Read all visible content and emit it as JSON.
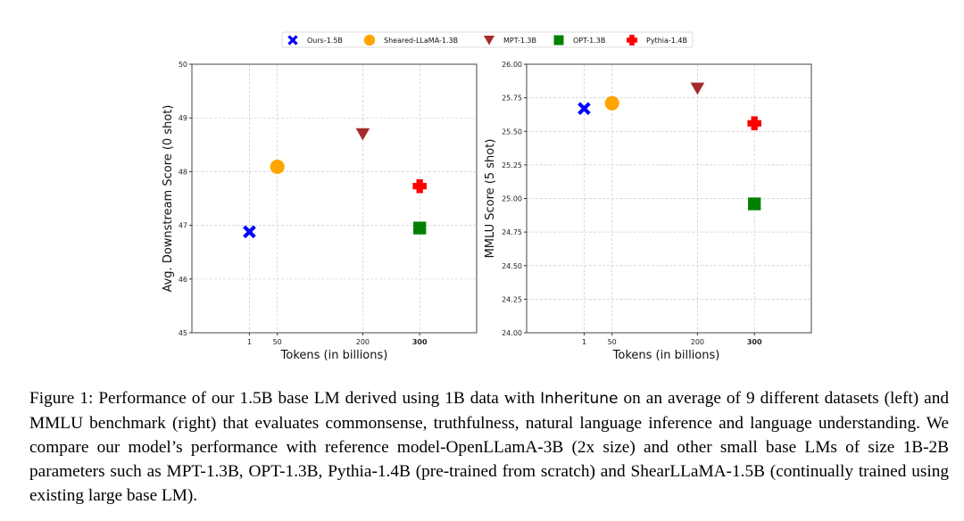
{
  "legend": [
    {
      "name": "Ours-1.5B",
      "marker": "x",
      "color": "#0000ff"
    },
    {
      "name": "Sheared-LLaMA-1.3B",
      "marker": "circle",
      "color": "#ffa500"
    },
    {
      "name": "MPT-1.3B",
      "marker": "triangle-down",
      "color": "#a52a2a"
    },
    {
      "name": "OPT-1.3B",
      "marker": "square",
      "color": "#008000"
    },
    {
      "name": "Pythia-1.4B",
      "marker": "plus",
      "color": "#ff0000"
    }
  ],
  "chart_data": [
    {
      "type": "scatter",
      "xlabel": "Tokens (in billions)",
      "ylabel": "Avg. Downstream Score (0 shot)",
      "xlim": [
        -100,
        400
      ],
      "ylim": [
        45,
        50
      ],
      "grid": true,
      "xticks": [
        1,
        50,
        200,
        300
      ],
      "yticks": [
        "45",
        "46",
        "47",
        "48",
        "49",
        "50"
      ],
      "series": [
        {
          "name": "Ours-1.5B",
          "x": [
            1
          ],
          "y": [
            46.88
          ]
        },
        {
          "name": "Sheared-LLaMA-1.3B",
          "x": [
            50
          ],
          "y": [
            48.09
          ]
        },
        {
          "name": "MPT-1.3B",
          "x": [
            200
          ],
          "y": [
            48.7
          ]
        },
        {
          "name": "OPT-1.3B",
          "x": [
            300
          ],
          "y": [
            46.95
          ]
        },
        {
          "name": "Pythia-1.4B",
          "x": [
            300
          ],
          "y": [
            47.73
          ]
        }
      ]
    },
    {
      "type": "scatter",
      "xlabel": "Tokens (in billions)",
      "ylabel": "MMLU Score (5 shot)",
      "xlim": [
        -100,
        400
      ],
      "ylim": [
        24,
        26
      ],
      "grid": true,
      "xticks": [
        1,
        50,
        200,
        300
      ],
      "yticks": [
        "24.00",
        "24.25",
        "24.50",
        "24.75",
        "25.00",
        "25.25",
        "25.50",
        "25.75",
        "26.00"
      ],
      "series": [
        {
          "name": "Ours-1.5B",
          "x": [
            1
          ],
          "y": [
            25.67
          ]
        },
        {
          "name": "Sheared-LLaMA-1.3B",
          "x": [
            50
          ],
          "y": [
            25.71
          ]
        },
        {
          "name": "MPT-1.3B",
          "x": [
            200
          ],
          "y": [
            25.82
          ]
        },
        {
          "name": "OPT-1.3B",
          "x": [
            300
          ],
          "y": [
            24.96
          ]
        },
        {
          "name": "Pythia-1.4B",
          "x": [
            300
          ],
          "y": [
            25.56
          ]
        }
      ]
    }
  ],
  "caption": {
    "part1": "Figure 1: Performance of our 1.5B base LM derived using 1B data with ",
    "method": "Inheritune",
    "part2": " on an average of 9 different datasets (left) and MMLU benchmark (right) that evaluates commonsense, truthfulness, natural language inference and language understanding. We compare our model’s performance with reference model-OpenLLamA-3B (2x size) and other small base LMs of size 1B-2B parameters such as MPT-1.3B, OPT-1.3B, Pythia-1.4B (pre-trained from scratch) and ShearLLaMA-1.5B (continually trained using existing large base LM)."
  }
}
